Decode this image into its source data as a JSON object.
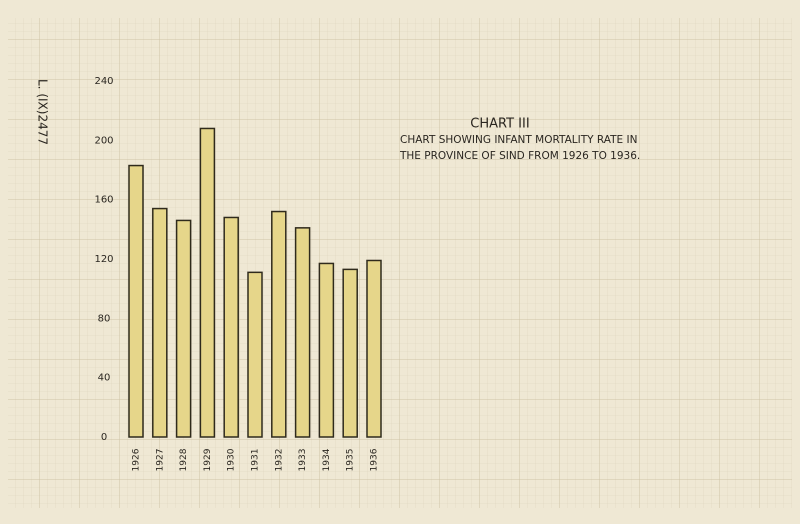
{
  "chart_data": {
    "type": "bar",
    "title": "CHART III",
    "subtitle": [
      "CHART SHOWING INFANT MORTALITY RATE IN",
      "THE PROVINCE OF SIND FROM 1926 TO 1936."
    ],
    "annotation": "L. (IX)2477",
    "categories": [
      "1926",
      "1927",
      "1928",
      "1929",
      "1930",
      "1931",
      "1932",
      "1933",
      "1934",
      "1935",
      "1936"
    ],
    "values": [
      183,
      154,
      146,
      208,
      148,
      111,
      152,
      141,
      117,
      113,
      119
    ],
    "color": "#e6d68a",
    "ylim": [
      0,
      240
    ],
    "yticks": [
      0,
      40,
      80,
      120,
      160,
      200,
      240
    ],
    "grid": false
  }
}
